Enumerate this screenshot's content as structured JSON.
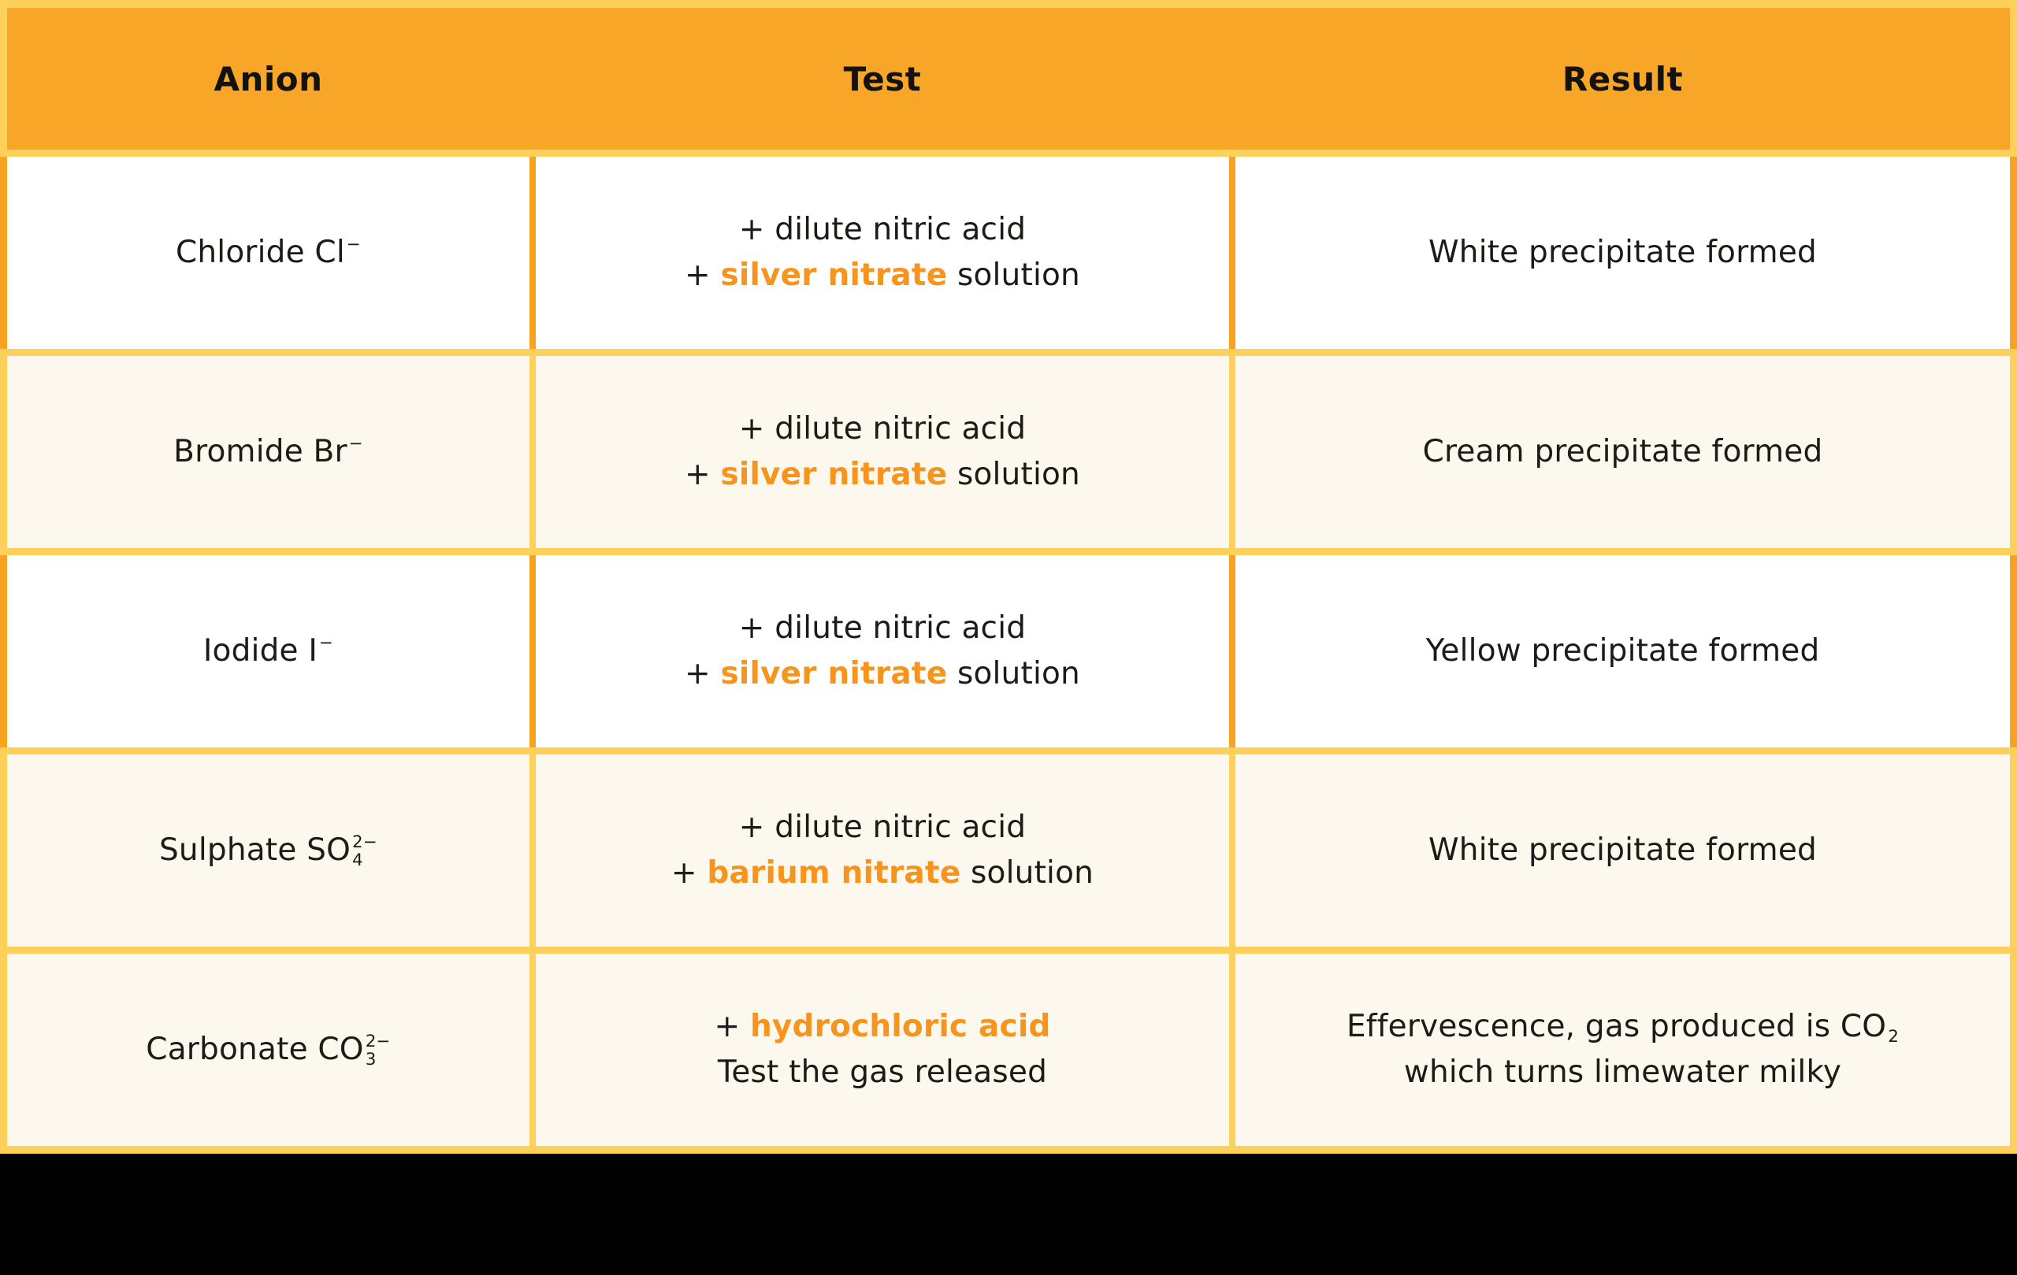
{
  "colors": {
    "header_bg": "#F8A627",
    "grid_yellow": "#FDD05C",
    "grid_orange": "#F9A21F",
    "row_white_bg": "#FFFFFF",
    "row_cream_bg": "#FDF8ED",
    "text_black": "#1D1B17",
    "accent_orange": "#F7941D",
    "footer_black": "#000000"
  },
  "header": {
    "anion": "Anion",
    "test": "Test",
    "result": "Result"
  },
  "rows": [
    {
      "anion": {
        "base": "Chloride Cl",
        "sup": "−",
        "sub": ""
      },
      "test": {
        "lines": [
          {
            "pre": "+ dilute nitric acid",
            "strong": "",
            "post": ""
          },
          {
            "pre": "+ ",
            "strong": "silver nitrate",
            "post": " solution"
          }
        ]
      },
      "result": {
        "lines": [
          {
            "pre": "White precipitate formed",
            "sup": "",
            "sub": "",
            "post": ""
          },
          {
            "pre": ""
          }
        ]
      }
    },
    {
      "anion": {
        "base": "Bromide Br",
        "sup": "−",
        "sub": ""
      },
      "test": {
        "lines": [
          {
            "pre": "+ dilute nitric acid",
            "strong": "",
            "post": ""
          },
          {
            "pre": "+ ",
            "strong": "silver nitrate",
            "post": " solution"
          }
        ]
      },
      "result": {
        "lines": [
          {
            "pre": "Cream precipitate formed",
            "sup": "",
            "sub": "",
            "post": ""
          },
          {
            "pre": ""
          }
        ]
      }
    },
    {
      "anion": {
        "base": "Iodide I",
        "sup": "−",
        "sub": ""
      },
      "test": {
        "lines": [
          {
            "pre": "+ dilute nitric acid",
            "strong": "",
            "post": ""
          },
          {
            "pre": "+ ",
            "strong": "silver nitrate",
            "post": " solution"
          }
        ]
      },
      "result": {
        "lines": [
          {
            "pre": "Yellow precipitate formed",
            "sup": "",
            "sub": "",
            "post": ""
          },
          {
            "pre": ""
          }
        ]
      }
    },
    {
      "anion": {
        "base": "Sulphate SO",
        "sup": "2−",
        "sub": "4"
      },
      "test": {
        "lines": [
          {
            "pre": "+ dilute nitric acid",
            "strong": "",
            "post": ""
          },
          {
            "pre": "+ ",
            "strong": "barium nitrate",
            "post": " solution"
          }
        ]
      },
      "result": {
        "lines": [
          {
            "pre": "White precipitate formed",
            "sup": "",
            "sub": "",
            "post": ""
          },
          {
            "pre": ""
          }
        ]
      }
    },
    {
      "anion": {
        "base": "Carbonate CO",
        "sup": "2−",
        "sub": "3"
      },
      "test": {
        "lines": [
          {
            "pre": "+ ",
            "strong": "hydrochloric acid",
            "post": ""
          },
          {
            "pre": "Test the gas released",
            "strong": "",
            "post": ""
          }
        ]
      },
      "result": {
        "lines": [
          {
            "pre": "Effervescence, gas produced is CO",
            "sup": "",
            "sub": "2",
            "post": ""
          },
          {
            "pre": "which turns limewater milky"
          }
        ]
      }
    }
  ],
  "chart_data": {
    "type": "table",
    "columns": [
      "Anion",
      "Test",
      "Result"
    ],
    "rows": [
      [
        "Chloride Cl⁻",
        "+ dilute nitric acid + silver nitrate solution",
        "White precipitate formed"
      ],
      [
        "Bromide Br⁻",
        "+ dilute nitric acid + silver nitrate solution",
        "Cream precipitate formed"
      ],
      [
        "Iodide I⁻",
        "+ dilute nitric acid + silver nitrate solution",
        "Yellow precipitate formed"
      ],
      [
        "Sulphate SO₄²⁻",
        "+ dilute nitric acid + barium nitrate solution",
        "White precipitate formed"
      ],
      [
        "Carbonate CO₃²⁻",
        "+ hydrochloric acid, test the gas released",
        "Effervescence, gas produced is CO₂ which turns limewater milky"
      ]
    ],
    "highlighted_reagents": [
      "silver nitrate",
      "barium nitrate",
      "hydrochloric acid"
    ],
    "layout_hints": {
      "header_fill": "#F8A627",
      "row_fills": [
        "#FFFFFF",
        "#FDF8ED",
        "#FFFFFF",
        "#FDF8ED",
        "#FDF8ED"
      ],
      "grid": "on"
    }
  }
}
